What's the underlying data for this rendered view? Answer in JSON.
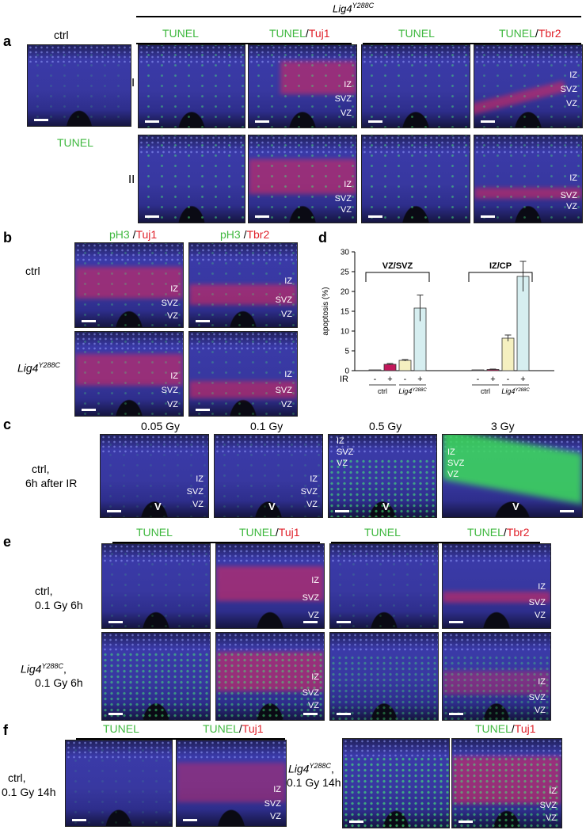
{
  "top_title": "Lig4Y288C",
  "panels": {
    "a": {
      "letter": "a",
      "ctrl_label": "ctrl",
      "ctrl_stain": "TUNEL",
      "col_tunel_1": "TUNEL",
      "col_tunel_tuj1_g": "TUNEL",
      "col_tunel_tuj1_r": "Tuj1",
      "col_tunel_2": "TUNEL",
      "col_tunel_tbr2_g": "TUNEL",
      "col_tunel_tbr2_r": "Tbr2",
      "row1": "I",
      "row2": "II"
    },
    "b": {
      "letter": "b",
      "col1_g": "pH3",
      "col1_r": "Tuj1",
      "col2_g": "pH3",
      "col2_r": "Tbr2",
      "row1": "ctrl",
      "row2_base": "Lig4",
      "row2_sup": "Y288C"
    },
    "c": {
      "letter": "c",
      "row_label_1": "ctrl,",
      "row_label_2": "6h after IR",
      "doses": [
        "0.05 Gy",
        "0.1 Gy",
        "0.5 Gy",
        "3 Gy"
      ]
    },
    "d": {
      "letter": "d",
      "ylabel": "apoptosis (%)",
      "ir_label": "IR",
      "group_ctrl": "ctrl",
      "group_lig4_base": "Lig4",
      "group_lig4_sup": "Y288C",
      "bracket1": "VZ/SVZ",
      "bracket2": "IZ/CP",
      "minus": "-",
      "plus": "+"
    },
    "e": {
      "letter": "e",
      "col_tunel_1": "TUNEL",
      "col_tunel_tuj1_g": "TUNEL",
      "col_tunel_tuj1_r": "Tuj1",
      "col_tunel_2": "TUNEL",
      "col_tunel_tbr2_g": "TUNEL",
      "col_tunel_tbr2_r": "Tbr2",
      "row1_l1": "ctrl,",
      "row1_l2": "0.1 Gy 6h",
      "row2_l1_base": "Lig4",
      "row2_l1_sup": "Y288C",
      "row2_l1_suffix": ",",
      "row2_l2": "0.1 Gy 6h"
    },
    "f": {
      "letter": "f",
      "col_tunel": "TUNEL",
      "col_tunel_tuj1_g": "TUNEL",
      "col_tunel_tuj1_r": "Tuj1",
      "col2_tunel_tuj1_g": "TUNEL",
      "col2_tunel_tuj1_r": "Tuj1",
      "row1_l1": "ctrl,",
      "row1_l2": "0.1 Gy 14h",
      "row2_l1_base": "Lig4",
      "row2_l1_sup": "Y288C",
      "row2_l1_suffix": ",",
      "row2_l2": "0.1 Gy 14h"
    }
  },
  "zones": {
    "iz": "IZ",
    "svz": "SVZ",
    "vz": "VZ",
    "v": "V"
  },
  "chart_data": {
    "type": "bar",
    "ylabel": "apoptosis (%)",
    "ylim": [
      0,
      30
    ],
    "yticks": [
      "0",
      "5",
      "10",
      "15",
      "20",
      "25",
      "30"
    ],
    "groups": [
      {
        "name": "VZ/SVZ",
        "bars": [
          {
            "genotype": "ctrl",
            "ir": "-",
            "value": 0.1,
            "error": 0,
            "color": "#c8b8c0"
          },
          {
            "genotype": "ctrl",
            "ir": "+",
            "value": 1.6,
            "error": 0.2,
            "color": "#c2185b"
          },
          {
            "genotype": "Lig4Y288C",
            "ir": "-",
            "value": 2.6,
            "error": 0.2,
            "color": "#f5f0c0"
          },
          {
            "genotype": "Lig4Y288C",
            "ir": "+",
            "value": 15.8,
            "error": 3.3,
            "color": "#d6eef0"
          }
        ]
      },
      {
        "name": "IZ/CP",
        "bars": [
          {
            "genotype": "ctrl",
            "ir": "-",
            "value": 0.1,
            "error": 0,
            "color": "#c8b8c0"
          },
          {
            "genotype": "ctrl",
            "ir": "+",
            "value": 0.3,
            "error": 0.1,
            "color": "#c2185b"
          },
          {
            "genotype": "Lig4Y288C",
            "ir": "-",
            "value": 8.2,
            "error": 0.8,
            "color": "#f5f0c0"
          },
          {
            "genotype": "Lig4Y288C",
            "ir": "+",
            "value": 23.8,
            "error": 3.8,
            "color": "#d6eef0"
          }
        ]
      }
    ]
  }
}
